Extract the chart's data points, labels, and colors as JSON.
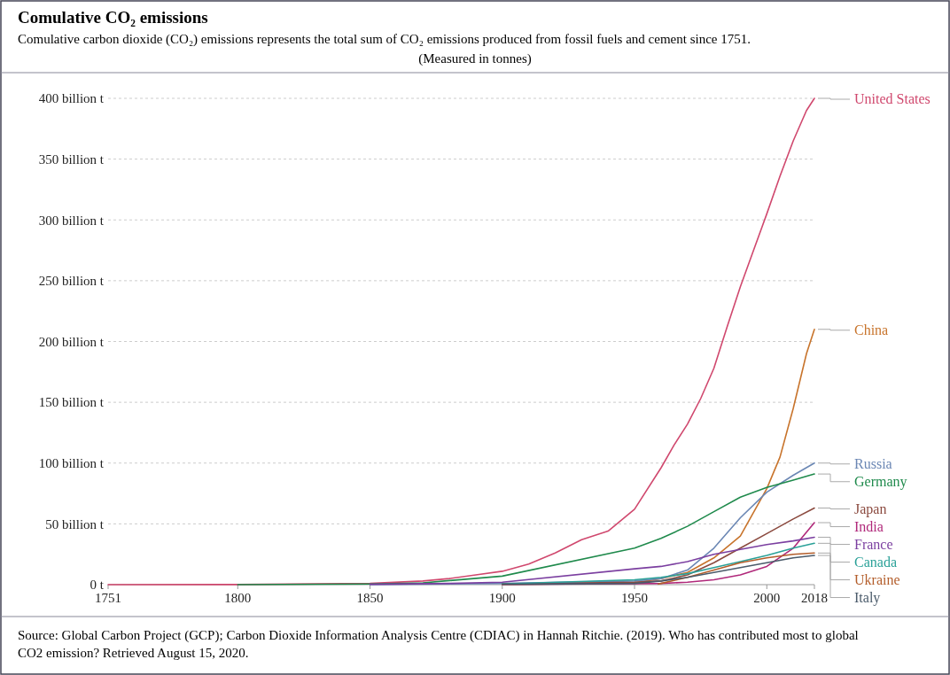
{
  "chart_data": {
    "type": "line",
    "title": "Comulative CO₂ emissions",
    "subtitle": "Comulative carbon dioxide (CO₂) emissions represents the total sum of CO₂ emissions produced from fossil fuels and cement since 1751. (Measured in tonnes)",
    "annotations": [
      "Source: Global Carbon Project (GCP); Carbon Dioxide Information Analysis Centre (CDIAC) in Hannah Ritchie. (2019). Who has contributed most to global CO2 emission? Retrieved August 15, 2020."
    ],
    "xlim": [
      1751,
      2018
    ],
    "xticks": [
      1751,
      1800,
      1850,
      1900,
      1950,
      2000,
      2018
    ],
    "ylim": [
      0,
      400
    ],
    "yticks": [
      {
        "value": 0,
        "label": "0 t"
      },
      {
        "value": 50,
        "label": "50 billion t"
      },
      {
        "value": 100,
        "label": "100 billion t"
      },
      {
        "value": 150,
        "label": "150 billion t"
      },
      {
        "value": 200,
        "label": "200 billion t"
      },
      {
        "value": 250,
        "label": "250 billion t"
      },
      {
        "value": 300,
        "label": "300 billion t"
      },
      {
        "value": 350,
        "label": "350 billion t"
      },
      {
        "value": 400,
        "label": "400 billion t"
      }
    ],
    "grid": "y",
    "legend": false,
    "line_style": "solid",
    "marker": "none",
    "series": [
      {
        "name": "United States",
        "color": "#d0486e",
        "x": [
          1751,
          1800,
          1850,
          1870,
          1880,
          1890,
          1900,
          1910,
          1920,
          1930,
          1940,
          1950,
          1960,
          1965,
          1970,
          1975,
          1980,
          1985,
          1990,
          1995,
          2000,
          2005,
          2010,
          2015,
          2018
        ],
        "values": [
          0,
          0.1,
          1,
          3,
          5,
          8,
          11,
          17,
          26,
          37,
          44,
          62,
          96,
          115,
          132,
          153,
          178,
          212,
          245,
          275,
          305,
          336,
          365,
          390,
          400
        ]
      },
      {
        "name": "China",
        "color": "#c8742c",
        "x": [
          1900,
          1950,
          1960,
          1970,
          1980,
          1990,
          2000,
          2005,
          2010,
          2015,
          2018
        ],
        "values": [
          0.1,
          1.5,
          5,
          10,
          22,
          40,
          79,
          105,
          145,
          190,
          210
        ]
      },
      {
        "name": "Russia",
        "color": "#6b87b4",
        "x": [
          1850,
          1900,
          1950,
          1960,
          1970,
          1980,
          1990,
          2000,
          2010,
          2018
        ],
        "values": [
          0,
          1,
          3,
          5,
          12,
          30,
          55,
          76,
          90,
          100
        ]
      },
      {
        "name": "Germany",
        "color": "#1f8a4c",
        "x": [
          1800,
          1850,
          1870,
          1900,
          1950,
          1960,
          1970,
          1980,
          1990,
          2000,
          2010,
          2018
        ],
        "values": [
          0,
          0.5,
          1.5,
          7,
          30,
          38,
          48,
          60,
          72,
          80,
          86,
          91
        ]
      },
      {
        "name": "Japan",
        "color": "#8b4a3f",
        "x": [
          1900,
          1950,
          1960,
          1970,
          1980,
          1990,
          2000,
          2010,
          2018
        ],
        "values": [
          0.5,
          2,
          3,
          8,
          18,
          30,
          42,
          54,
          63
        ]
      },
      {
        "name": "India",
        "color": "#b0287a",
        "x": [
          1900,
          1950,
          1960,
          1970,
          1980,
          1990,
          2000,
          2010,
          2018
        ],
        "values": [
          0.2,
          0.8,
          1,
          2,
          4,
          8,
          15,
          30,
          51
        ]
      },
      {
        "name": "France",
        "color": "#7b3fa0",
        "x": [
          1850,
          1880,
          1900,
          1950,
          1960,
          1970,
          1980,
          1990,
          2000,
          2010,
          2018
        ],
        "values": [
          0.3,
          1,
          2,
          13,
          15,
          19,
          25,
          29,
          33,
          36,
          39
        ]
      },
      {
        "name": "Canada",
        "color": "#2aa198",
        "x": [
          1900,
          1950,
          1960,
          1970,
          1980,
          1990,
          2000,
          2010,
          2018
        ],
        "values": [
          0.5,
          4,
          6,
          9,
          14,
          19,
          24,
          30,
          34
        ]
      },
      {
        "name": "Ukraine",
        "color": "#b35d2a",
        "x": [
          1959,
          1960,
          1970,
          1980,
          1990,
          2000,
          2010,
          2018
        ],
        "values": [
          0.5,
          1,
          6,
          12,
          18,
          22,
          25,
          26
        ]
      },
      {
        "name": "Italy",
        "color": "#4a5a6a",
        "x": [
          1900,
          1950,
          1960,
          1970,
          1980,
          1990,
          2000,
          2010,
          2018
        ],
        "values": [
          0.3,
          1,
          3,
          6,
          10,
          14,
          18,
          22,
          24
        ]
      }
    ]
  }
}
